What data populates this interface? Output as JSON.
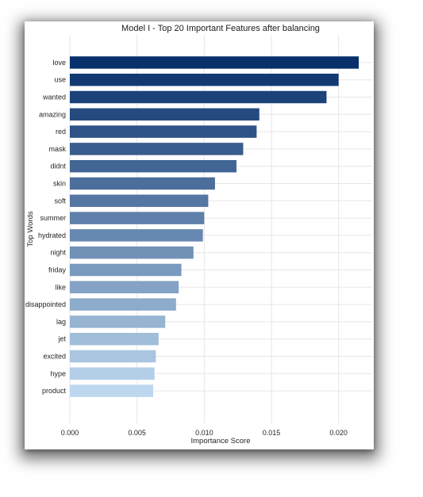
{
  "chart_data": {
    "type": "bar",
    "orientation": "horizontal",
    "title": "Model I - Top 20 Important Features after balancing",
    "xlabel": "Importance Score",
    "ylabel": "Top Words",
    "xlim": [
      0,
      0.0225
    ],
    "xticks": [
      "0.000",
      "0.005",
      "0.010",
      "0.015",
      "0.020"
    ],
    "grid": true,
    "color_scale": [
      "#08306b",
      "#bdd7ee"
    ],
    "categories": [
      "love",
      "use",
      "wanted",
      "amazing",
      "red",
      "mask",
      "didnt",
      "skin",
      "soft",
      "summer",
      "hydrated",
      "night",
      "friday",
      "like",
      "disappointed",
      "lag",
      "jet",
      "excited",
      "hype",
      "product"
    ],
    "values": [
      0.0215,
      0.02,
      0.0191,
      0.0141,
      0.0139,
      0.0129,
      0.0124,
      0.0108,
      0.0103,
      0.01,
      0.0099,
      0.0092,
      0.0083,
      0.0081,
      0.0079,
      0.0071,
      0.0066,
      0.0064,
      0.0063,
      0.0062
    ]
  }
}
